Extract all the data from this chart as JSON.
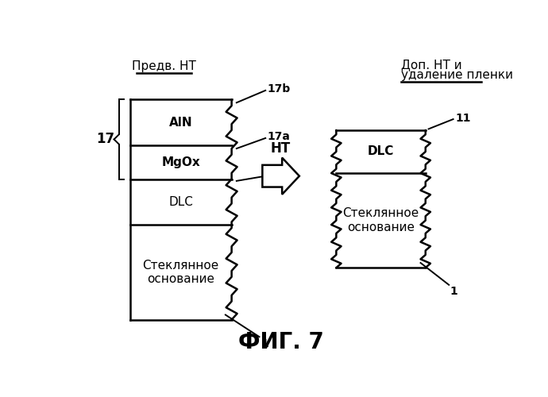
{
  "title": "ФИГ. 7",
  "bg_color": "#ffffff",
  "left_label_top": "Предв. НТ",
  "right_label_top_line1": "Доп. НТ и",
  "right_label_top_line2": "удаление пленки",
  "arrow_label": "НТ",
  "font_size_label": 11,
  "font_size_title": 20,
  "font_size_annotation": 10,
  "font_size_top_label": 11
}
